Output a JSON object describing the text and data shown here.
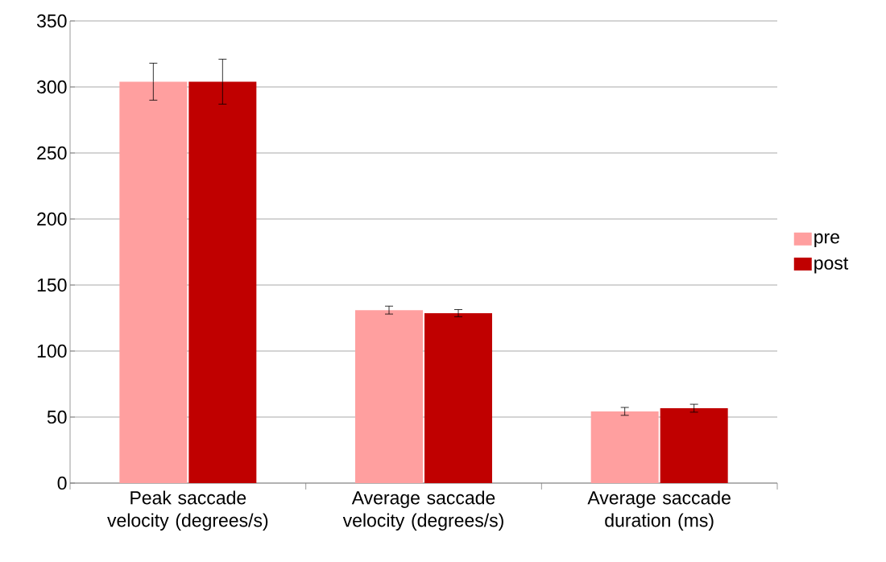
{
  "chart_data": {
    "type": "bar",
    "categories": [
      "Peak saccade velocity (degrees/s)",
      "Average saccade velocity (degrees/s)",
      "Average saccade duration (ms)"
    ],
    "series": [
      {
        "name": "pre",
        "color": "#ff9f9f",
        "values": [
          304,
          131,
          54.3
        ],
        "errors": [
          14,
          3,
          3
        ]
      },
      {
        "name": "post",
        "color": "#c00000",
        "values": [
          304,
          128.7,
          56.7
        ],
        "errors": [
          17,
          2.7,
          3
        ]
      }
    ],
    "ylim": [
      0,
      350
    ],
    "yticks": [
      0,
      50,
      100,
      150,
      200,
      250,
      300,
      350
    ],
    "grid": "y",
    "legend": "right"
  }
}
